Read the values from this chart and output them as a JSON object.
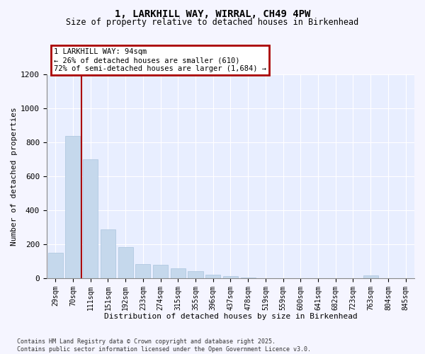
{
  "title_line1": "1, LARKHILL WAY, WIRRAL, CH49 4PW",
  "title_line2": "Size of property relative to detached houses in Birkenhead",
  "xlabel": "Distribution of detached houses by size in Birkenhead",
  "ylabel": "Number of detached properties",
  "categories": [
    "29sqm",
    "70sqm",
    "111sqm",
    "151sqm",
    "192sqm",
    "233sqm",
    "274sqm",
    "315sqm",
    "355sqm",
    "396sqm",
    "437sqm",
    "478sqm",
    "519sqm",
    "559sqm",
    "600sqm",
    "641sqm",
    "682sqm",
    "723sqm",
    "763sqm",
    "804sqm",
    "845sqm"
  ],
  "values": [
    150,
    835,
    700,
    290,
    185,
    85,
    80,
    60,
    45,
    22,
    12,
    4,
    2,
    1,
    1,
    0,
    0,
    0,
    18,
    0,
    0
  ],
  "bar_color": "#c5d8ec",
  "bar_edgecolor": "#aac4de",
  "ylim": [
    0,
    1200
  ],
  "yticks": [
    0,
    200,
    400,
    600,
    800,
    1000,
    1200
  ],
  "vline_x": 1.5,
  "vline_color": "#aa0000",
  "annotation_text": "1 LARKHILL WAY: 94sqm\n← 26% of detached houses are smaller (610)\n72% of semi-detached houses are larger (1,684) →",
  "annotation_box_edgecolor": "#aa0000",
  "plot_bg_color": "#e8eeff",
  "grid_color": "#ffffff",
  "footnote_line1": "Contains HM Land Registry data © Crown copyright and database right 2025.",
  "footnote_line2": "Contains public sector information licensed under the Open Government Licence v3.0.",
  "fig_bg_color": "#f5f5ff"
}
